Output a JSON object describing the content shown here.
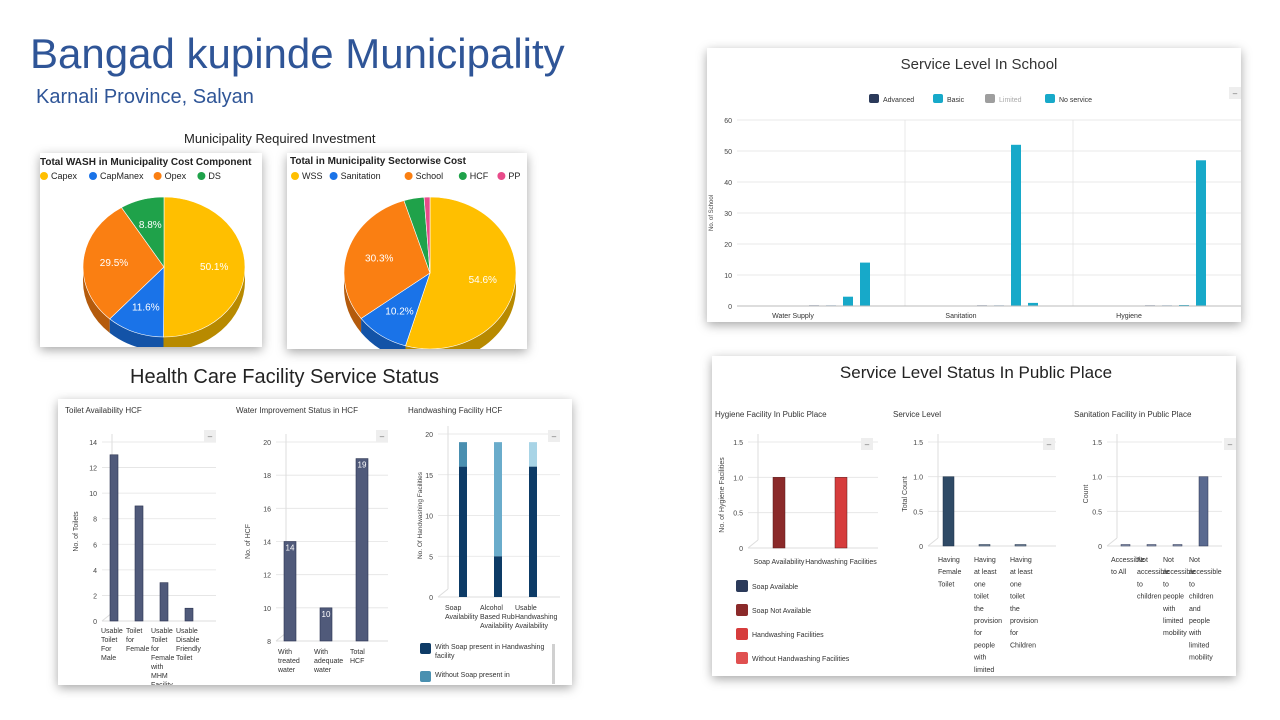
{
  "header": {
    "title": "Bangad kupinde Municipality",
    "subtitle": "Karnali Province, Salyan"
  },
  "investment": {
    "heading": "Municipality Required Investment"
  },
  "hcf": {
    "heading": "Health Care Facility Service Status"
  },
  "colors": {
    "yellow": "#ffbf00",
    "blue": "#1a73e8",
    "orange": "#fa7f12",
    "green": "#1fa24a",
    "pink": "#e84b8a",
    "navy": "#2b3a5a",
    "cyan": "#17a9c9",
    "slate": "#505a7a",
    "darkred": "#8b2a2a",
    "red": "#d63c3c",
    "hwnavy": "#0d3b66",
    "hwteal": "#4a90b0"
  },
  "chart_data": [
    {
      "id": "wash_cost_component",
      "type": "pie",
      "title": "Total WASH in Municipality Cost Component",
      "legend": [
        "Capex",
        "CapManex",
        "Opex",
        "DS"
      ],
      "values": [
        50.1,
        11.6,
        29.5,
        8.8
      ],
      "labels": [
        "50.1%",
        "11.6%",
        "29.5%",
        "8.8%"
      ],
      "legend_position": "top"
    },
    {
      "id": "sectorwise_cost",
      "type": "pie",
      "title": "Total in Municipality Sectorwise Cost",
      "legend": [
        "WSS",
        "Sanitation",
        "School",
        "HCF",
        "PP"
      ],
      "values": [
        54.6,
        10.2,
        30.3,
        3.8,
        1.1
      ],
      "labels": [
        "54.6%",
        "10.2%",
        "30.3%",
        "",
        ""
      ],
      "legend_position": "top"
    },
    {
      "id": "school_service_level",
      "type": "bar",
      "title": "Service Level In School",
      "ylabel": "No. of School",
      "xlabel": "",
      "categories": [
        "Water Supply",
        "Sanitation",
        "Hygiene"
      ],
      "series": [
        {
          "name": "Advanced",
          "values": [
            0,
            0,
            0
          ]
        },
        {
          "name": "Basic",
          "values": [
            0,
            0,
            0
          ]
        },
        {
          "name": "Limited",
          "values": [
            3,
            52,
            0
          ]
        },
        {
          "name": "No service",
          "values": [
            14,
            1,
            47
          ]
        }
      ],
      "ylim": [
        0,
        60
      ],
      "yticks": [
        "0",
        "10",
        "20",
        "30",
        "40",
        "50",
        "60"
      ],
      "legend_position": "top"
    },
    {
      "id": "toilet_hcf",
      "type": "bar",
      "title": "Toilet Availability HCF",
      "ylabel": "No. of Toilets",
      "categories": [
        "Usable Toilet For Male",
        "Toilet for Female",
        "Usable Toilet for Female with MHM Facility",
        "Usable Disable Friendly Toilet"
      ],
      "values": [
        13,
        9,
        3,
        1
      ],
      "ylim": [
        0,
        14
      ],
      "yticks": [
        "0",
        "2",
        "4",
        "6",
        "8",
        "10",
        "12",
        "14"
      ]
    },
    {
      "id": "water_hcf",
      "type": "bar",
      "title": "Water Improvement Status in HCF",
      "ylabel": "No. of HCF",
      "categories": [
        "With treated water",
        "With adequate water",
        "Total HCF"
      ],
      "values": [
        14,
        10,
        19
      ],
      "value_labels": [
        "14",
        "10",
        "19"
      ],
      "ylim": [
        8,
        20
      ],
      "yticks": [
        "8",
        "10",
        "12",
        "14",
        "16",
        "18",
        "20"
      ]
    },
    {
      "id": "handwashing_hcf",
      "type": "bar",
      "title": "Handwashing Facility HCF",
      "ylabel": "No. Of Handwashing Facilities",
      "categories": [
        "Soap Availability",
        "Alcohol Based Rub Availability",
        "Usable Handwashing Availability"
      ],
      "series": [
        {
          "name": "With Soap present in Handwashing facility",
          "values": [
            16,
            5,
            16
          ]
        },
        {
          "name": "Without Soap present in",
          "values": [
            3,
            14,
            3
          ]
        }
      ],
      "ylim": [
        0,
        20
      ],
      "yticks": [
        "0",
        "5",
        "10",
        "15",
        "20"
      ],
      "legend_position": "bottom"
    },
    {
      "id": "pp_hygiene",
      "type": "bar",
      "title": "Hygiene Facility In Public Place",
      "ylabel": "No. of Hygiene Facilities",
      "categories": [
        "Soap Availability",
        "Handwashing Facilities"
      ],
      "series": [
        {
          "name": "Soap Available",
          "values": [
            0,
            0
          ]
        },
        {
          "name": "Soap Not Available",
          "values": [
            1,
            0
          ]
        },
        {
          "name": "Handwashing Facilities",
          "values": [
            0,
            1
          ]
        },
        {
          "name": "Without Handwashing Facilities",
          "values": [
            0,
            0
          ]
        }
      ],
      "ylim": [
        0,
        1.5
      ],
      "yticks": [
        "0",
        "0.5",
        "1.0",
        "1.5"
      ],
      "legend_position": "bottom"
    },
    {
      "id": "pp_service_level",
      "type": "bar",
      "title": "Service Level",
      "ylabel": "Total Count",
      "categories": [
        "Having Female Toilet",
        "Having at least one toilet the provision for people with limited mobility",
        "Having at least one toilet the provision for Children"
      ],
      "values": [
        1,
        0,
        0
      ],
      "ylim": [
        0,
        1.5
      ],
      "yticks": [
        "0",
        "0.5",
        "1.0",
        "1.5"
      ]
    },
    {
      "id": "pp_sanitation",
      "type": "bar",
      "title": "Sanitation Facility in Public Place",
      "ylabel": "Count",
      "categories": [
        "Accessible to All",
        "Not accessible to children",
        "Not accessible to people with limited mobility",
        "Not accessible to children and people with limited mobility"
      ],
      "values": [
        0,
        0,
        0,
        1
      ],
      "ylim": [
        0,
        1.5
      ],
      "yticks": [
        "0",
        "0.5",
        "1.0",
        "1.5"
      ]
    }
  ],
  "public_place": {
    "heading": "Service Level Status In Public Place"
  }
}
